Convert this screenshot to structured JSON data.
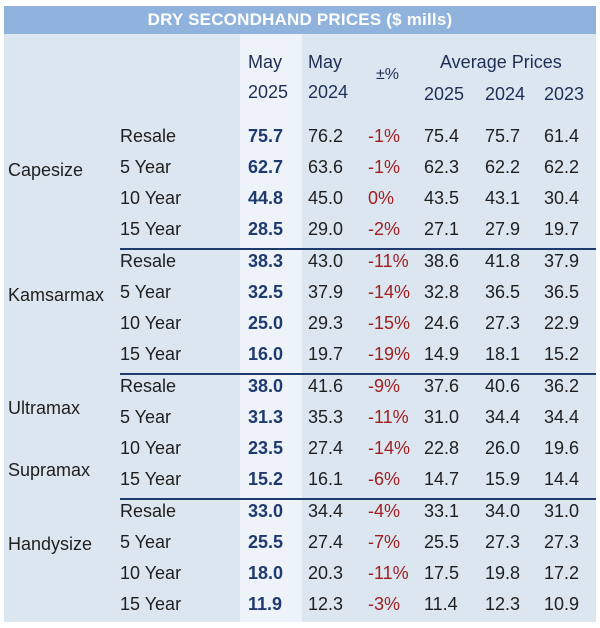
{
  "title": "DRY SECONDHAND PRICES ($ mills)",
  "headers": {
    "may": "May",
    "y2025": "2025",
    "y2024": "2024",
    "pct": "±%",
    "average": "Average Prices",
    "avg2025": "2025",
    "avg2024": "2024",
    "avg2023": "2023"
  },
  "groups": [
    {
      "labels": [
        "Capesize"
      ],
      "rows": [
        {
          "age": "Resale",
          "may2025": "75.7",
          "may2024": "76.2",
          "pct": "-1%",
          "avg2025": "75.4",
          "avg2024": "75.7",
          "avg2023": "61.4"
        },
        {
          "age": "5 Year",
          "may2025": "62.7",
          "may2024": "63.6",
          "pct": "-1%",
          "avg2025": "62.3",
          "avg2024": "62.2",
          "avg2023": "62.2"
        },
        {
          "age": "10 Year",
          "may2025": "44.8",
          "may2024": "45.0",
          "pct": "0%",
          "avg2025": "43.5",
          "avg2024": "43.1",
          "avg2023": "30.4"
        },
        {
          "age": "15 Year",
          "may2025": "28.5",
          "may2024": "29.0",
          "pct": "-2%",
          "avg2025": "27.1",
          "avg2024": "27.9",
          "avg2023": "19.7"
        }
      ]
    },
    {
      "labels": [
        "Kamsarmax"
      ],
      "rows": [
        {
          "age": "Resale",
          "may2025": "38.3",
          "may2024": "43.0",
          "pct": "-11%",
          "avg2025": "38.6",
          "avg2024": "41.8",
          "avg2023": "37.9"
        },
        {
          "age": "5 Year",
          "may2025": "32.5",
          "may2024": "37.9",
          "pct": "-14%",
          "avg2025": "32.8",
          "avg2024": "36.5",
          "avg2023": "36.5"
        },
        {
          "age": "10 Year",
          "may2025": "25.0",
          "may2024": "29.3",
          "pct": "-15%",
          "avg2025": "24.6",
          "avg2024": "27.3",
          "avg2023": "22.9"
        },
        {
          "age": "15 Year",
          "may2025": "16.0",
          "may2024": "19.7",
          "pct": "-19%",
          "avg2025": "14.9",
          "avg2024": "18.1",
          "avg2023": "15.2"
        }
      ]
    },
    {
      "labels": [
        "Ultramax",
        "Supramax"
      ],
      "rows": [
        {
          "age": "Resale",
          "may2025": "38.0",
          "may2024": "41.6",
          "pct": "-9%",
          "avg2025": "37.6",
          "avg2024": "40.6",
          "avg2023": "36.2"
        },
        {
          "age": "5 Year",
          "may2025": "31.3",
          "may2024": "35.3",
          "pct": "-11%",
          "avg2025": "31.0",
          "avg2024": "34.4",
          "avg2023": "34.4"
        },
        {
          "age": "10 Year",
          "may2025": "23.5",
          "may2024": "27.4",
          "pct": "-14%",
          "avg2025": "22.8",
          "avg2024": "26.0",
          "avg2023": "19.6"
        },
        {
          "age": "15 Year",
          "may2025": "15.2",
          "may2024": "16.1",
          "pct": "-6%",
          "avg2025": "14.7",
          "avg2024": "15.9",
          "avg2023": "14.4"
        }
      ]
    },
    {
      "labels": [
        "Handysize"
      ],
      "rows": [
        {
          "age": "Resale",
          "may2025": "33.0",
          "may2024": "34.4",
          "pct": "-4%",
          "avg2025": "33.1",
          "avg2024": "34.0",
          "avg2023": "31.0"
        },
        {
          "age": "5 Year",
          "may2025": "25.5",
          "may2024": "27.4",
          "pct": "-7%",
          "avg2025": "25.5",
          "avg2024": "27.3",
          "avg2023": "27.3"
        },
        {
          "age": "10 Year",
          "may2025": "18.0",
          "may2024": "20.3",
          "pct": "-11%",
          "avg2025": "17.5",
          "avg2024": "19.8",
          "avg2023": "17.2"
        },
        {
          "age": "15 Year",
          "may2025": "11.9",
          "may2024": "12.3",
          "pct": "-3%",
          "avg2025": "11.4",
          "avg2024": "12.3",
          "avg2023": "10.9"
        }
      ]
    }
  ]
}
